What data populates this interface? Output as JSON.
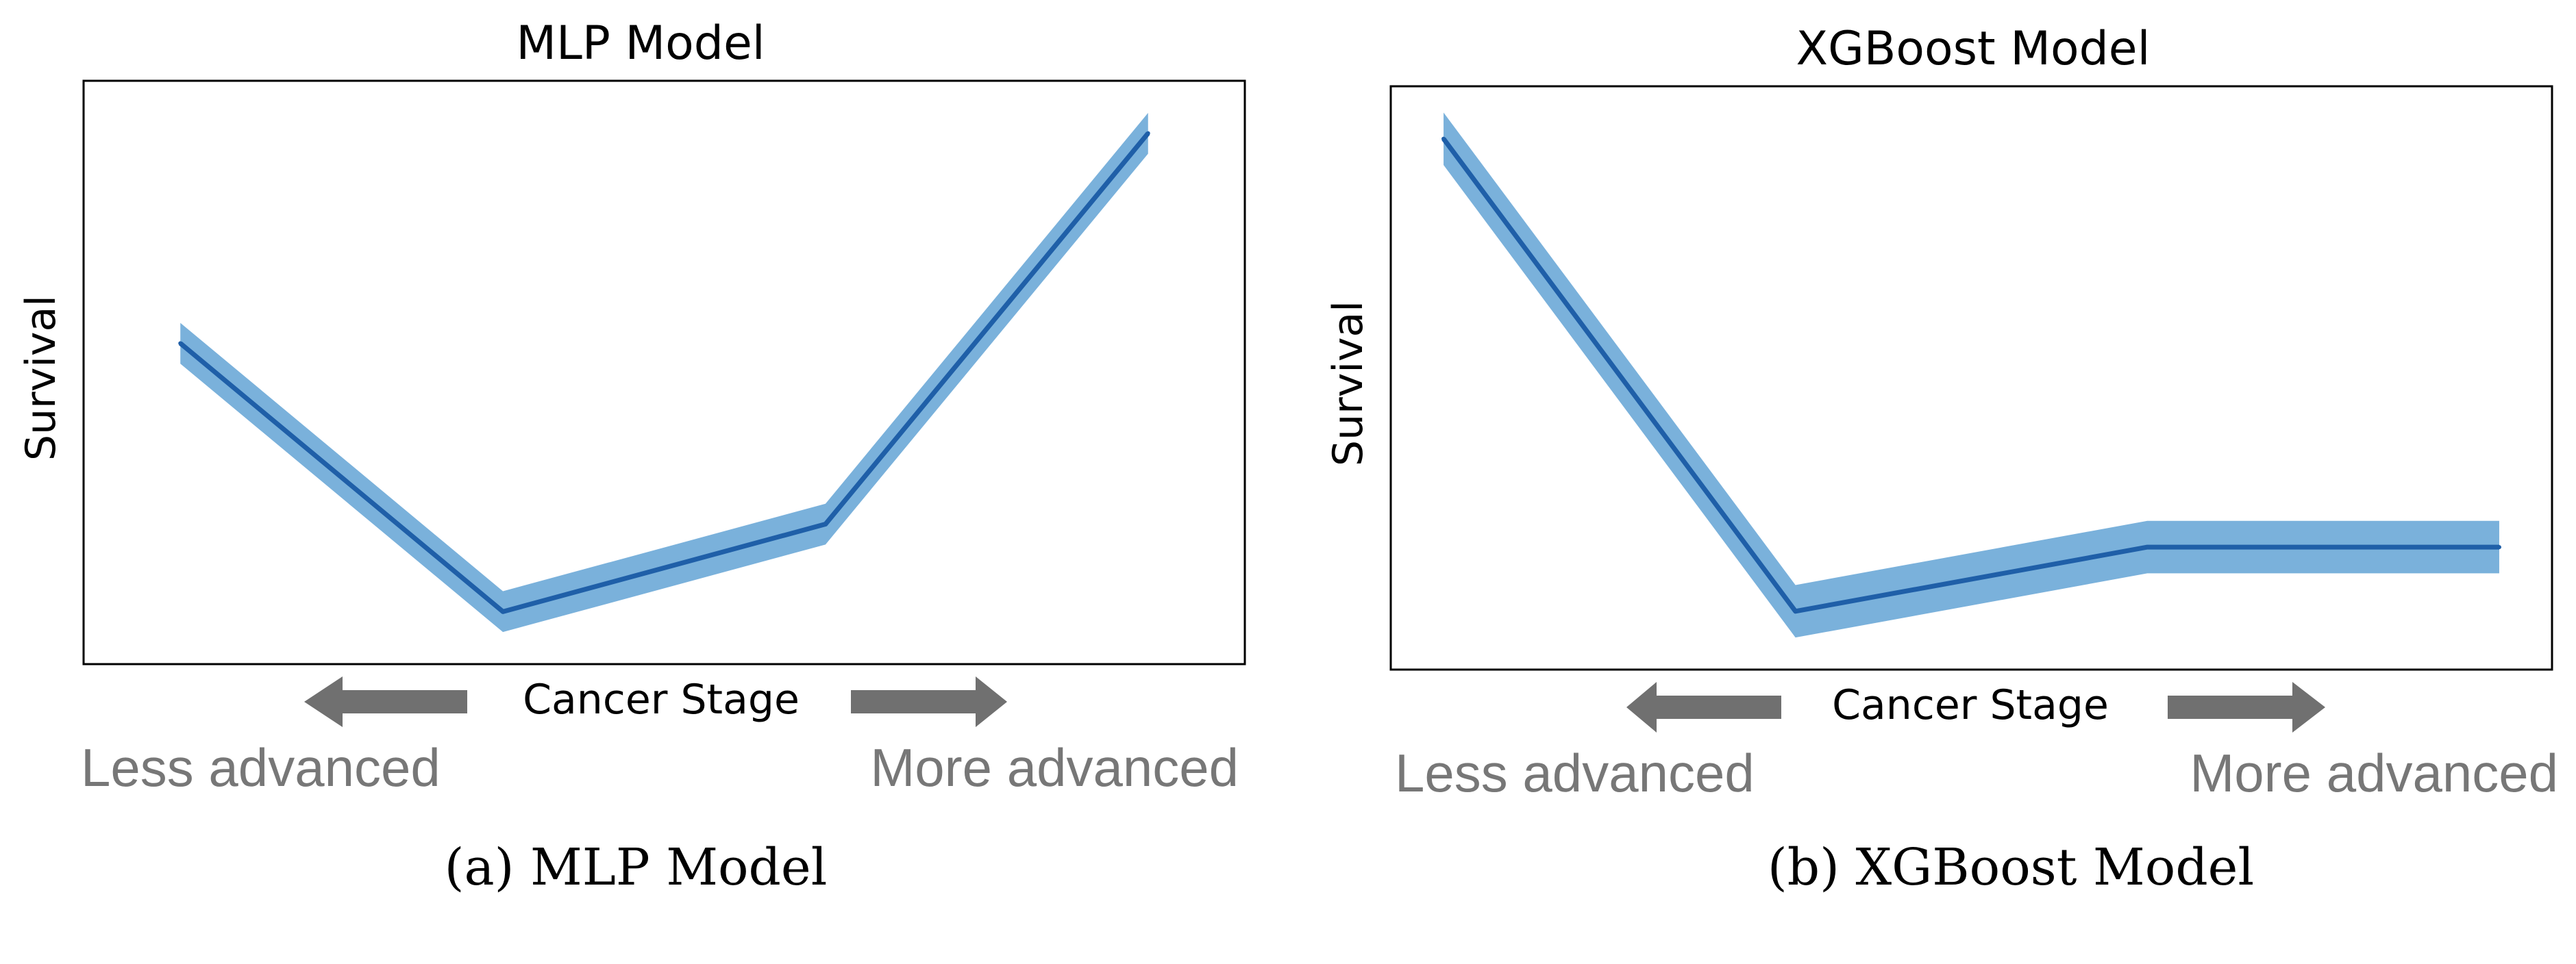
{
  "chart_data": [
    {
      "type": "line",
      "title": "MLP Model",
      "ylabel": "Survival",
      "xlabel": "Cancer Stage",
      "direction_left": "Less advanced",
      "direction_right": "More advanced",
      "caption": "(a) MLP Model",
      "x": [
        1,
        2,
        3,
        4
      ],
      "xlim": [
        0.7,
        4.3
      ],
      "ylim": [
        0,
        1
      ],
      "series": [
        {
          "values": [
            0.55,
            0.09,
            0.24,
            0.91
          ],
          "band": 0.035,
          "color": "#1f5fa8",
          "band_color": "#7ab1db"
        }
      ],
      "grid": false,
      "legend": false
    },
    {
      "type": "line",
      "title": "XGBoost Model",
      "ylabel": "Survival",
      "xlabel": "Cancer Stage",
      "direction_left": "Less advanced",
      "direction_right": "More advanced",
      "caption": "(b) XGBoost Model",
      "x": [
        1,
        2,
        3,
        4
      ],
      "xlim": [
        0.85,
        4.15
      ],
      "ylim": [
        0,
        1
      ],
      "series": [
        {
          "values": [
            0.91,
            0.1,
            0.21,
            0.21
          ],
          "band": 0.045,
          "color": "#1f5fa8",
          "band_color": "#7ab1db"
        }
      ],
      "grid": false,
      "legend": false
    }
  ]
}
